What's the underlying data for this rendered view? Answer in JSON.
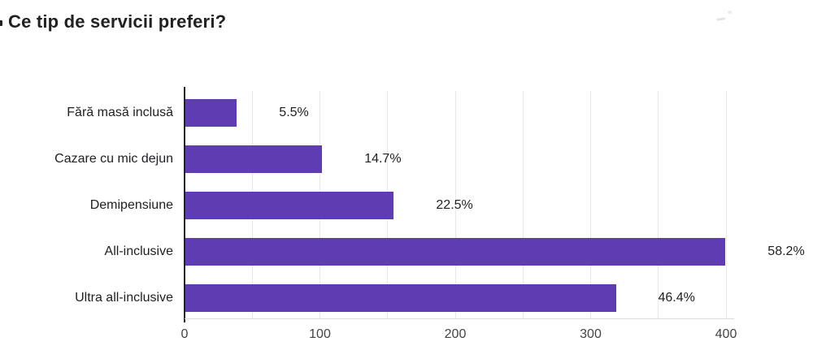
{
  "title": "Ce tip de servicii preferi?",
  "colors": {
    "bar": "#5e3cb2",
    "title_text": "#212121",
    "label_text": "#202124",
    "tick_text": "#444444",
    "gridline": "#e9e9e9",
    "baseline": "#dadce0",
    "background": "#ffffff"
  },
  "chart_data": {
    "type": "bar",
    "orientation": "horizontal",
    "title": "Ce tip de servicii preferi?",
    "categories": [
      "Fără masă inclusă",
      "Cazare cu mic dejun",
      "Demipensiune",
      "All-inclusive",
      "Ultra all-inclusive"
    ],
    "values": [
      38,
      101,
      154,
      399,
      318
    ],
    "percent_labels": [
      "5.5%",
      "14.7%",
      "22.5%",
      "58.2%",
      "46.4%"
    ],
    "x_ticks": [
      "0",
      "100",
      "200",
      "300",
      "400"
    ],
    "x_tick_values": [
      0,
      100,
      200,
      300,
      400
    ],
    "xlim": [
      0,
      400
    ],
    "gridline_interval": 50,
    "grid": "vertical-light",
    "legend": "none",
    "data_label_position": "right-of-bar"
  }
}
